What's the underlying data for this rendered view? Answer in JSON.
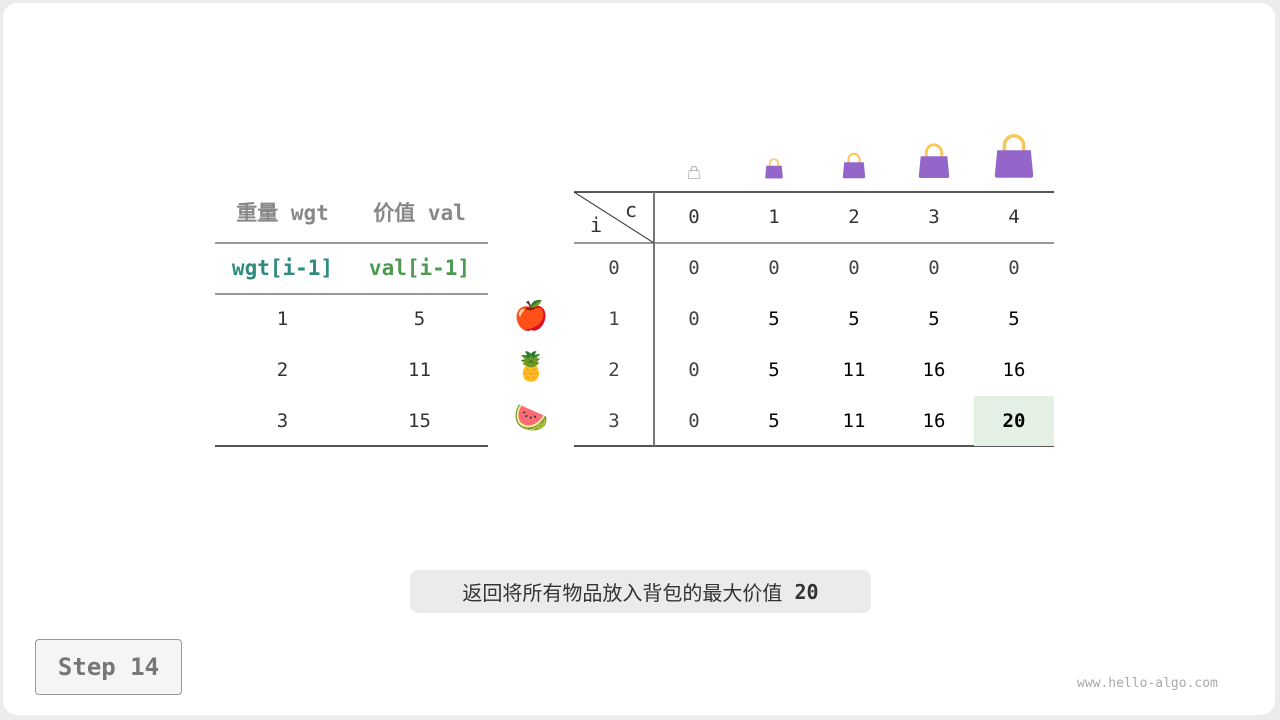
{
  "items_table": {
    "headers": [
      "重量 wgt",
      "价值 val"
    ],
    "subheaders": [
      "wgt[i-1]",
      "val[i-1]"
    ],
    "rows": [
      [
        "1",
        "5"
      ],
      [
        "2",
        "11"
      ],
      [
        "3",
        "15"
      ]
    ],
    "fruits": [
      "🍎",
      "🍍",
      "🍉"
    ],
    "fruit_icons": [
      "apple-icon",
      "pineapple-icon",
      "watermelon-icon"
    ]
  },
  "dp_table": {
    "corner_row_label": "i",
    "corner_col_label": "c",
    "capacities": [
      "0",
      "1",
      "2",
      "3",
      "4"
    ],
    "row_labels": [
      "0",
      "1",
      "2",
      "3"
    ],
    "rows": [
      [
        "0",
        "0",
        "0",
        "0",
        "0"
      ],
      [
        "0",
        "5",
        "5",
        "5",
        "5"
      ],
      [
        "0",
        "5",
        "11",
        "16",
        "16"
      ],
      [
        "0",
        "5",
        "11",
        "16",
        "20"
      ]
    ],
    "highlight_cell": {
      "row": 3,
      "col": 4,
      "color": "#e3f0e3"
    }
  },
  "caption": {
    "text": "返回将所有物品放入背包的最大价值",
    "value": "20"
  },
  "step_label": "Step 14",
  "watermark": "www.hello-algo.com",
  "colors": {
    "wgt": "#2e8b7f",
    "val": "#4e9a50",
    "bag": "#9466c9",
    "handle": "#f9c85c"
  }
}
